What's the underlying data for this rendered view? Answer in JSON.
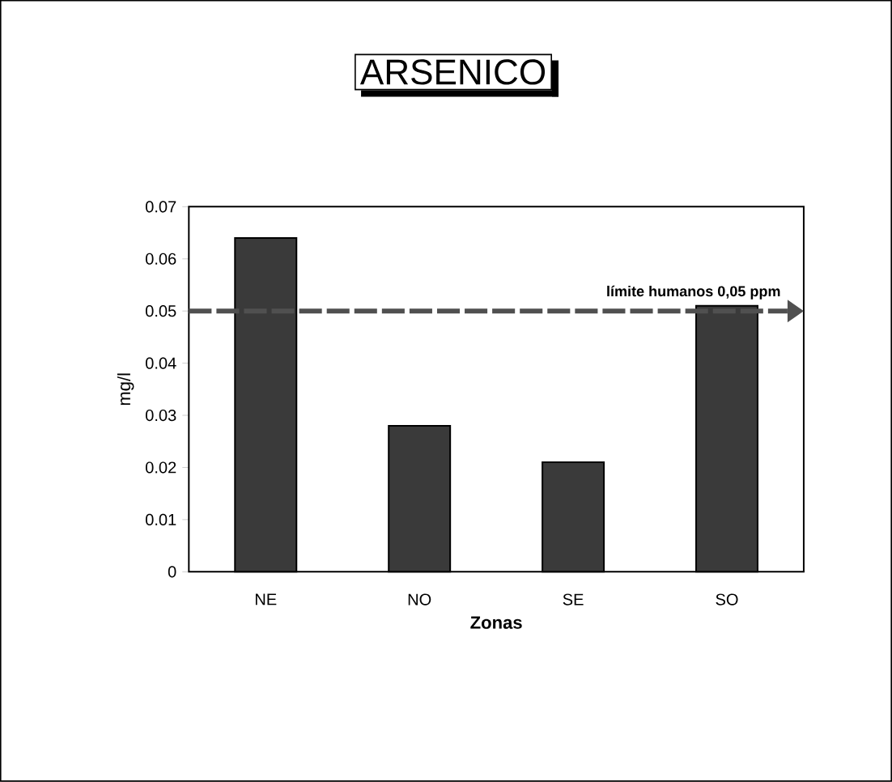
{
  "chart_data": {
    "type": "bar",
    "title": "ARSENICO",
    "xlabel": "Zonas",
    "ylabel": "mg/l",
    "categories": [
      "NE",
      "NO",
      "SE",
      "SO"
    ],
    "values": [
      0.064,
      0.028,
      0.021,
      0.051
    ],
    "color": "#3a3a3a",
    "ylim": [
      0,
      0.07
    ],
    "yticks": [
      0,
      0.01,
      0.02,
      0.03,
      0.04,
      0.05,
      0.06,
      0.07
    ],
    "ref_lines": [
      {
        "axis": "y",
        "value": 0.05,
        "label": "límite humanos 0,05 ppm",
        "color": "#505050",
        "line_style": "dashed"
      }
    ]
  }
}
